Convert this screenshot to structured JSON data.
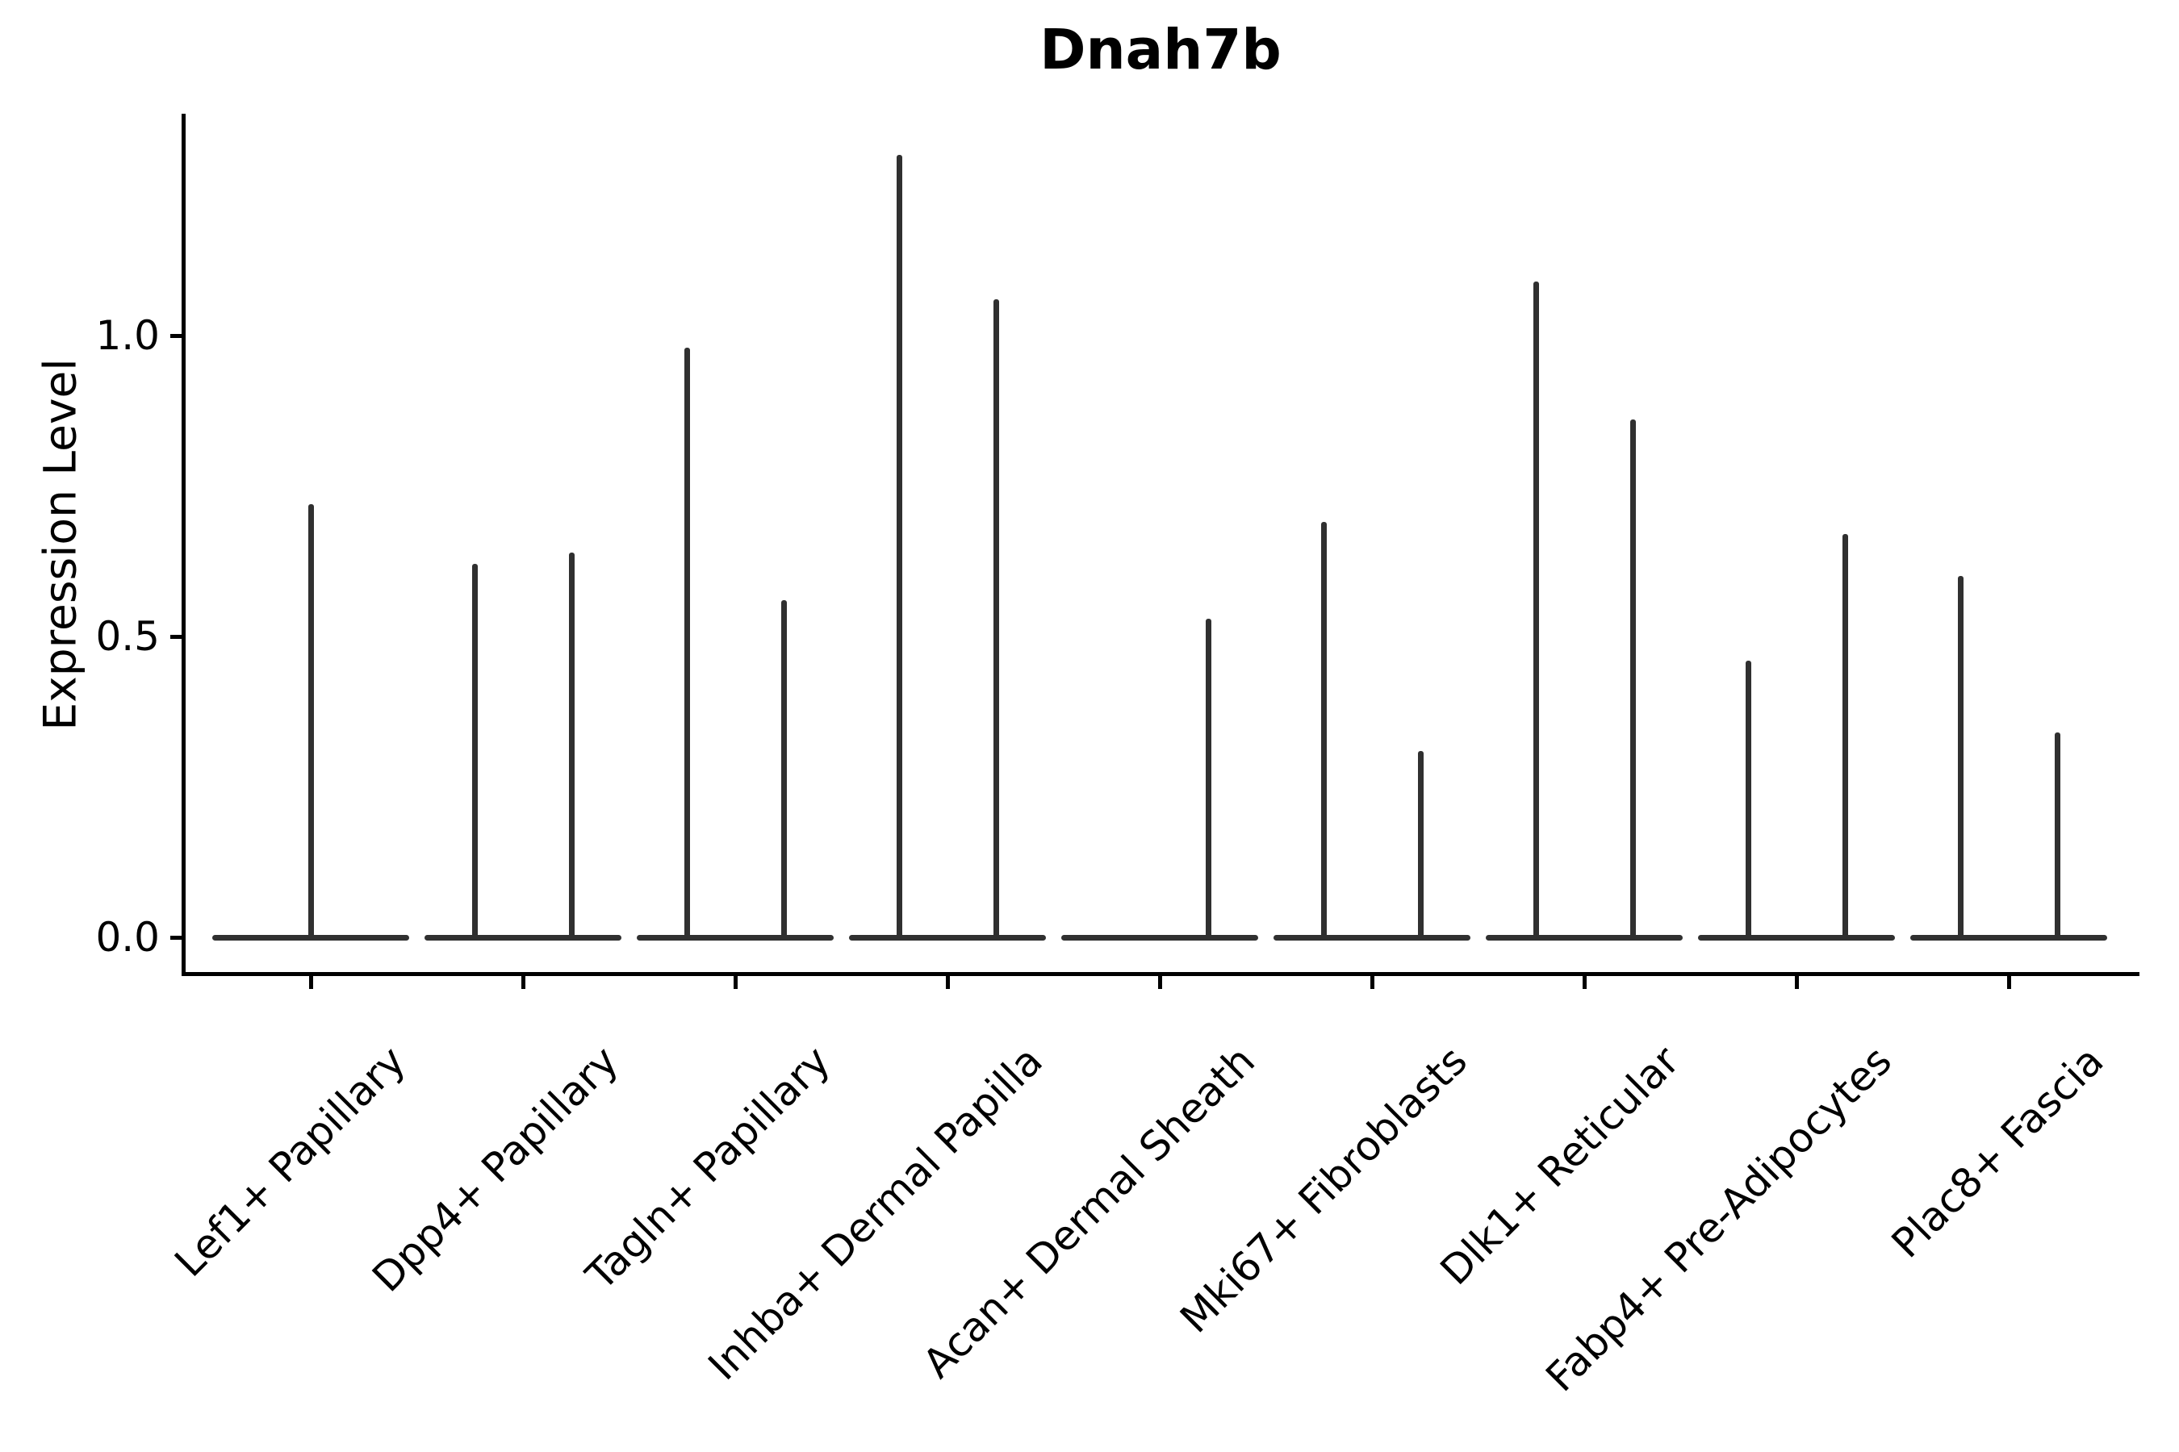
{
  "chart_data": {
    "type": "violin",
    "title": "Dnah7b",
    "ylabel": "Expression Level",
    "xlabel": "",
    "ytick_labels": [
      "0.0",
      "0.5",
      "1.0"
    ],
    "ytick_values": [
      0.0,
      0.5,
      1.0
    ],
    "ylim": [
      -0.06,
      1.37
    ],
    "grid": false,
    "legend": "none",
    "categories": [
      "Lef1+ Papillary",
      "Dpp4+ Papillary",
      "Tagln+ Papillary",
      "Inhba+ Dermal Papilla",
      "Acan+ Dermal Sheath",
      "Mki67+ Fibroblasts",
      "Dlk1+ Reticular",
      "Fabp4+ Pre-Adipocytes",
      "Plac8+ Fascia"
    ],
    "violins": [
      {
        "category": "Lef1+ Papillary",
        "spikes": [
          {
            "position": "center",
            "min": 0.0,
            "max": 0.72
          }
        ]
      },
      {
        "category": "Dpp4+ Papillary",
        "spikes": [
          {
            "position": "left",
            "min": 0.0,
            "max": 0.62
          },
          {
            "position": "right",
            "min": 0.0,
            "max": 0.64
          }
        ]
      },
      {
        "category": "Tagln+ Papillary",
        "spikes": [
          {
            "position": "left",
            "min": 0.0,
            "max": 0.98
          },
          {
            "position": "right",
            "min": 0.0,
            "max": 0.56
          }
        ]
      },
      {
        "category": "Inhba+ Dermal Papilla",
        "spikes": [
          {
            "position": "left",
            "min": 0.0,
            "max": 1.3
          },
          {
            "position": "right",
            "min": 0.0,
            "max": 1.06
          }
        ]
      },
      {
        "category": "Acan+ Dermal Sheath",
        "spikes": [
          {
            "position": "right",
            "min": 0.0,
            "max": 0.53
          }
        ]
      },
      {
        "category": "Mki67+ Fibroblasts",
        "spikes": [
          {
            "position": "left",
            "min": 0.0,
            "max": 0.69
          },
          {
            "position": "right",
            "min": 0.0,
            "max": 0.31
          }
        ]
      },
      {
        "category": "Dlk1+ Reticular",
        "spikes": [
          {
            "position": "left",
            "min": 0.0,
            "max": 1.09
          },
          {
            "position": "right",
            "min": 0.0,
            "max": 0.86
          }
        ]
      },
      {
        "category": "Fabp4+ Pre-Adipocytes",
        "spikes": [
          {
            "position": "left",
            "min": 0.0,
            "max": 0.46
          },
          {
            "position": "right",
            "min": 0.0,
            "max": 0.67
          }
        ]
      },
      {
        "category": "Plac8+ Fascia",
        "spikes": [
          {
            "position": "left",
            "min": 0.0,
            "max": 0.6
          },
          {
            "position": "right",
            "min": 0.0,
            "max": 0.34
          }
        ]
      }
    ],
    "colors": {
      "violin": "#303030",
      "axis": "#000000",
      "text": "#000000"
    }
  }
}
